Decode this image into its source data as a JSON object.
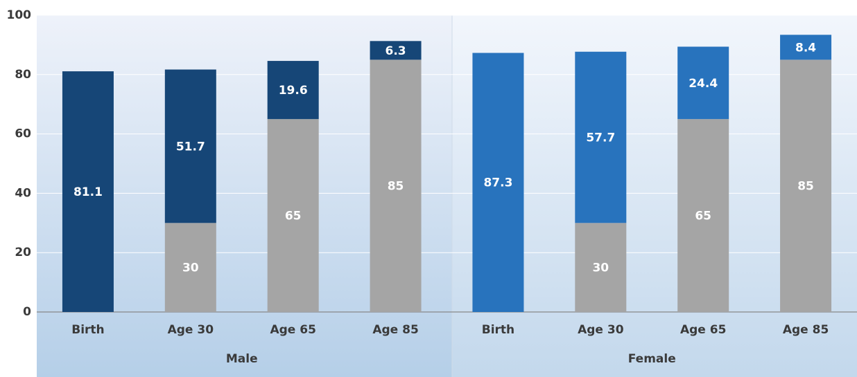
{
  "chart_data": {
    "type": "bar",
    "stacked": true,
    "categories": [
      "Birth",
      "Age 30",
      "Age 65",
      "Age 85",
      "Birth",
      "Age 30",
      "Age 65",
      "Age 85"
    ],
    "groups": [
      "Male",
      "Female"
    ],
    "series": [
      {
        "color": "#a5a5a5",
        "values": [
          null,
          30,
          65,
          85,
          null,
          30,
          65,
          85
        ]
      },
      {
        "colors": [
          "#164677",
          "#2873bd"
        ],
        "values": [
          81.1,
          51.7,
          19.6,
          6.3,
          87.3,
          57.7,
          24.4,
          8.4
        ]
      }
    ],
    "ylim": [
      0,
      100
    ],
    "yticks": [
      0,
      20,
      40,
      60,
      80,
      100
    ],
    "grid": true
  }
}
